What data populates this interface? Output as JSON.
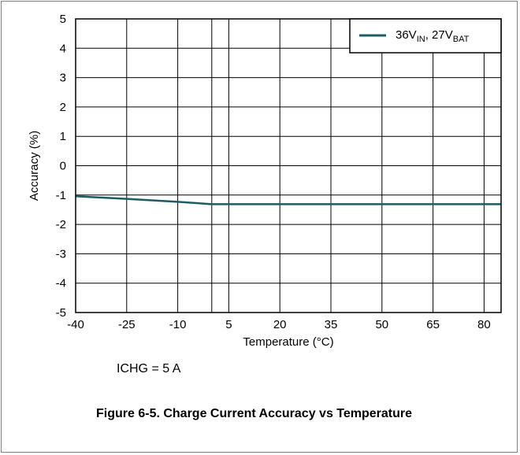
{
  "chart_data": {
    "type": "line",
    "xlabel": "Temperature (°C)",
    "ylabel": "Accuracy (%)",
    "xlim": [
      -40,
      85
    ],
    "ylim": [
      -5,
      5
    ],
    "x_ticks": [
      -40,
      -25,
      -10,
      5,
      20,
      35,
      50,
      65,
      80
    ],
    "x_grid": [
      -40,
      -25,
      -10,
      0,
      5,
      20,
      35,
      50,
      65,
      80,
      85
    ],
    "y_ticks": [
      -5,
      -4,
      -3,
      -2,
      -1,
      0,
      1,
      2,
      3,
      4,
      5
    ],
    "grid": true,
    "legend_position": "top-right",
    "series": [
      {
        "name": "36V_IN, 27V_BAT",
        "legend_main_1": "36V",
        "legend_sub_1": "IN",
        "legend_main_2": ", 27V",
        "legend_sub_2": "BAT",
        "color": "#1d5c63",
        "x": [
          -40,
          -25,
          -10,
          0,
          20,
          35,
          50,
          65,
          80,
          85
        ],
        "y": [
          -1.04,
          -1.13,
          -1.23,
          -1.31,
          -1.31,
          -1.31,
          -1.31,
          -1.31,
          -1.31,
          -1.31
        ]
      }
    ]
  },
  "note": "ICHG = 5 A",
  "caption": "Figure 6-5. Charge Current Accuracy vs Temperature"
}
